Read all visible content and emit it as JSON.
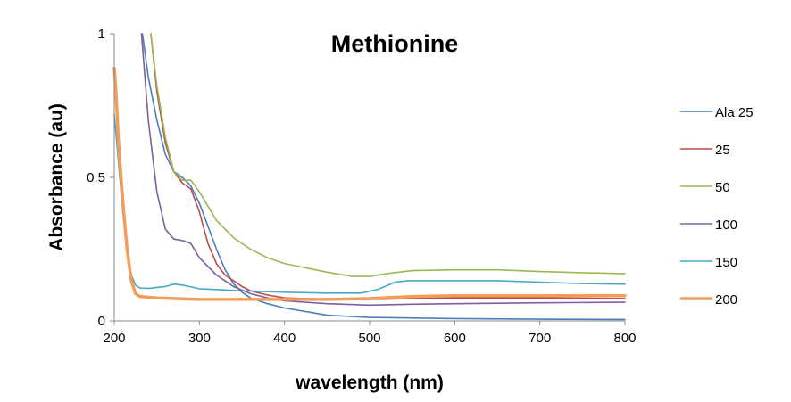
{
  "chart_data": {
    "type": "line",
    "title": "Methionine",
    "xlabel": "wavelength (nm)",
    "ylabel": "Absorbance (au)",
    "xlim": [
      200,
      800
    ],
    "ylim": [
      0,
      1
    ],
    "x_ticks": [
      "200",
      "300",
      "400",
      "500",
      "600",
      "700",
      "800"
    ],
    "x_tick_values": [
      200,
      300,
      400,
      500,
      600,
      700,
      800
    ],
    "y_ticks": [
      "0",
      "0.5",
      "1"
    ],
    "y_tick_values": [
      0,
      0.5,
      1
    ],
    "grid": false,
    "legend_position": "right",
    "series": [
      {
        "name": "Ala 25",
        "color": "#4a7ebb",
        "points": [
          [
            233,
            1.0
          ],
          [
            240,
            0.85
          ],
          [
            250,
            0.7
          ],
          [
            260,
            0.58
          ],
          [
            270,
            0.52
          ],
          [
            280,
            0.5
          ],
          [
            290,
            0.47
          ],
          [
            300,
            0.41
          ],
          [
            310,
            0.33
          ],
          [
            320,
            0.25
          ],
          [
            330,
            0.18
          ],
          [
            340,
            0.13
          ],
          [
            350,
            0.1
          ],
          [
            360,
            0.08
          ],
          [
            380,
            0.06
          ],
          [
            400,
            0.045
          ],
          [
            450,
            0.02
          ],
          [
            500,
            0.012
          ],
          [
            600,
            0.008
          ],
          [
            700,
            0.006
          ],
          [
            800,
            0.005
          ]
        ]
      },
      {
        "name": "25",
        "color": "#be4b48",
        "points": [
          [
            243,
            1.0
          ],
          [
            250,
            0.8
          ],
          [
            260,
            0.62
          ],
          [
            270,
            0.52
          ],
          [
            280,
            0.48
          ],
          [
            290,
            0.46
          ],
          [
            300,
            0.38
          ],
          [
            310,
            0.27
          ],
          [
            320,
            0.2
          ],
          [
            330,
            0.16
          ],
          [
            340,
            0.14
          ],
          [
            350,
            0.12
          ],
          [
            360,
            0.105
          ],
          [
            380,
            0.09
          ],
          [
            400,
            0.08
          ],
          [
            450,
            0.075
          ],
          [
            500,
            0.075
          ],
          [
            550,
            0.078
          ],
          [
            600,
            0.08
          ],
          [
            700,
            0.08
          ],
          [
            800,
            0.078
          ]
        ]
      },
      {
        "name": "50",
        "color": "#98b954",
        "points": [
          [
            243,
            1.0
          ],
          [
            250,
            0.82
          ],
          [
            260,
            0.64
          ],
          [
            270,
            0.52
          ],
          [
            280,
            0.49
          ],
          [
            290,
            0.49
          ],
          [
            300,
            0.45
          ],
          [
            310,
            0.4
          ],
          [
            320,
            0.35
          ],
          [
            340,
            0.29
          ],
          [
            360,
            0.25
          ],
          [
            380,
            0.22
          ],
          [
            400,
            0.2
          ],
          [
            450,
            0.17
          ],
          [
            480,
            0.155
          ],
          [
            500,
            0.155
          ],
          [
            520,
            0.165
          ],
          [
            550,
            0.175
          ],
          [
            600,
            0.178
          ],
          [
            650,
            0.178
          ],
          [
            700,
            0.172
          ],
          [
            750,
            0.168
          ],
          [
            800,
            0.165
          ]
        ]
      },
      {
        "name": "100",
        "color": "#7d60a0",
        "points": [
          [
            232,
            1.0
          ],
          [
            240,
            0.7
          ],
          [
            250,
            0.45
          ],
          [
            260,
            0.32
          ],
          [
            270,
            0.285
          ],
          [
            280,
            0.28
          ],
          [
            290,
            0.27
          ],
          [
            300,
            0.22
          ],
          [
            320,
            0.16
          ],
          [
            340,
            0.12
          ],
          [
            360,
            0.095
          ],
          [
            380,
            0.08
          ],
          [
            400,
            0.07
          ],
          [
            450,
            0.06
          ],
          [
            500,
            0.055
          ],
          [
            550,
            0.058
          ],
          [
            600,
            0.06
          ],
          [
            700,
            0.063
          ],
          [
            800,
            0.065
          ]
        ]
      },
      {
        "name": "150",
        "color": "#46aac5",
        "points": [
          [
            200,
            0.72
          ],
          [
            205,
            0.55
          ],
          [
            210,
            0.38
          ],
          [
            215,
            0.25
          ],
          [
            220,
            0.16
          ],
          [
            225,
            0.125
          ],
          [
            230,
            0.115
          ],
          [
            240,
            0.113
          ],
          [
            260,
            0.12
          ],
          [
            270,
            0.128
          ],
          [
            280,
            0.125
          ],
          [
            300,
            0.112
          ],
          [
            350,
            0.105
          ],
          [
            400,
            0.1
          ],
          [
            450,
            0.097
          ],
          [
            490,
            0.097
          ],
          [
            510,
            0.11
          ],
          [
            530,
            0.135
          ],
          [
            545,
            0.14
          ],
          [
            600,
            0.14
          ],
          [
            650,
            0.14
          ],
          [
            700,
            0.135
          ],
          [
            750,
            0.13
          ],
          [
            800,
            0.128
          ]
        ]
      },
      {
        "name": "200",
        "color": "#f59d56",
        "points": [
          [
            200,
            0.88
          ],
          [
            202,
            0.8
          ],
          [
            205,
            0.62
          ],
          [
            210,
            0.42
          ],
          [
            215,
            0.25
          ],
          [
            220,
            0.14
          ],
          [
            225,
            0.095
          ],
          [
            230,
            0.085
          ],
          [
            250,
            0.08
          ],
          [
            300,
            0.075
          ],
          [
            350,
            0.075
          ],
          [
            400,
            0.075
          ],
          [
            450,
            0.075
          ],
          [
            500,
            0.078
          ],
          [
            550,
            0.085
          ],
          [
            600,
            0.088
          ],
          [
            700,
            0.088
          ],
          [
            800,
            0.088
          ]
        ]
      }
    ]
  }
}
